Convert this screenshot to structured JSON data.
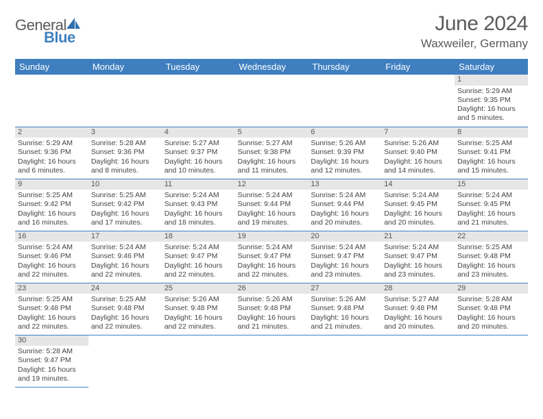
{
  "logo": {
    "name": "General",
    "accent": "Blue"
  },
  "title": "June 2024",
  "location": "Waxweiler, Germany",
  "colors": {
    "header_bg": "#3f7fbf",
    "header_text": "#ffffff",
    "daynum_bg": "#e6e6e6",
    "rule": "#3f7fbf",
    "text": "#444444",
    "title_text": "#5a5a5a"
  },
  "weekdays": [
    "Sunday",
    "Monday",
    "Tuesday",
    "Wednesday",
    "Thursday",
    "Friday",
    "Saturday"
  ],
  "first_weekday_index": 6,
  "days": [
    {
      "n": 1,
      "sunrise": "5:29 AM",
      "sunset": "9:35 PM",
      "daylight": "16 hours and 5 minutes."
    },
    {
      "n": 2,
      "sunrise": "5:29 AM",
      "sunset": "9:36 PM",
      "daylight": "16 hours and 6 minutes."
    },
    {
      "n": 3,
      "sunrise": "5:28 AM",
      "sunset": "9:36 PM",
      "daylight": "16 hours and 8 minutes."
    },
    {
      "n": 4,
      "sunrise": "5:27 AM",
      "sunset": "9:37 PM",
      "daylight": "16 hours and 10 minutes."
    },
    {
      "n": 5,
      "sunrise": "5:27 AM",
      "sunset": "9:38 PM",
      "daylight": "16 hours and 11 minutes."
    },
    {
      "n": 6,
      "sunrise": "5:26 AM",
      "sunset": "9:39 PM",
      "daylight": "16 hours and 12 minutes."
    },
    {
      "n": 7,
      "sunrise": "5:26 AM",
      "sunset": "9:40 PM",
      "daylight": "16 hours and 14 minutes."
    },
    {
      "n": 8,
      "sunrise": "5:25 AM",
      "sunset": "9:41 PM",
      "daylight": "16 hours and 15 minutes."
    },
    {
      "n": 9,
      "sunrise": "5:25 AM",
      "sunset": "9:42 PM",
      "daylight": "16 hours and 16 minutes."
    },
    {
      "n": 10,
      "sunrise": "5:25 AM",
      "sunset": "9:42 PM",
      "daylight": "16 hours and 17 minutes."
    },
    {
      "n": 11,
      "sunrise": "5:24 AM",
      "sunset": "9:43 PM",
      "daylight": "16 hours and 18 minutes."
    },
    {
      "n": 12,
      "sunrise": "5:24 AM",
      "sunset": "9:44 PM",
      "daylight": "16 hours and 19 minutes."
    },
    {
      "n": 13,
      "sunrise": "5:24 AM",
      "sunset": "9:44 PM",
      "daylight": "16 hours and 20 minutes."
    },
    {
      "n": 14,
      "sunrise": "5:24 AM",
      "sunset": "9:45 PM",
      "daylight": "16 hours and 20 minutes."
    },
    {
      "n": 15,
      "sunrise": "5:24 AM",
      "sunset": "9:45 PM",
      "daylight": "16 hours and 21 minutes."
    },
    {
      "n": 16,
      "sunrise": "5:24 AM",
      "sunset": "9:46 PM",
      "daylight": "16 hours and 22 minutes."
    },
    {
      "n": 17,
      "sunrise": "5:24 AM",
      "sunset": "9:46 PM",
      "daylight": "16 hours and 22 minutes."
    },
    {
      "n": 18,
      "sunrise": "5:24 AM",
      "sunset": "9:47 PM",
      "daylight": "16 hours and 22 minutes."
    },
    {
      "n": 19,
      "sunrise": "5:24 AM",
      "sunset": "9:47 PM",
      "daylight": "16 hours and 22 minutes."
    },
    {
      "n": 20,
      "sunrise": "5:24 AM",
      "sunset": "9:47 PM",
      "daylight": "16 hours and 23 minutes."
    },
    {
      "n": 21,
      "sunrise": "5:24 AM",
      "sunset": "9:47 PM",
      "daylight": "16 hours and 23 minutes."
    },
    {
      "n": 22,
      "sunrise": "5:25 AM",
      "sunset": "9:48 PM",
      "daylight": "16 hours and 23 minutes."
    },
    {
      "n": 23,
      "sunrise": "5:25 AM",
      "sunset": "9:48 PM",
      "daylight": "16 hours and 22 minutes."
    },
    {
      "n": 24,
      "sunrise": "5:25 AM",
      "sunset": "9:48 PM",
      "daylight": "16 hours and 22 minutes."
    },
    {
      "n": 25,
      "sunrise": "5:26 AM",
      "sunset": "9:48 PM",
      "daylight": "16 hours and 22 minutes."
    },
    {
      "n": 26,
      "sunrise": "5:26 AM",
      "sunset": "9:48 PM",
      "daylight": "16 hours and 21 minutes."
    },
    {
      "n": 27,
      "sunrise": "5:26 AM",
      "sunset": "9:48 PM",
      "daylight": "16 hours and 21 minutes."
    },
    {
      "n": 28,
      "sunrise": "5:27 AM",
      "sunset": "9:48 PM",
      "daylight": "16 hours and 20 minutes."
    },
    {
      "n": 29,
      "sunrise": "5:28 AM",
      "sunset": "9:48 PM",
      "daylight": "16 hours and 20 minutes."
    },
    {
      "n": 30,
      "sunrise": "5:28 AM",
      "sunset": "9:47 PM",
      "daylight": "16 hours and 19 minutes."
    }
  ],
  "labels": {
    "sunrise": "Sunrise:",
    "sunset": "Sunset:",
    "daylight": "Daylight:"
  }
}
